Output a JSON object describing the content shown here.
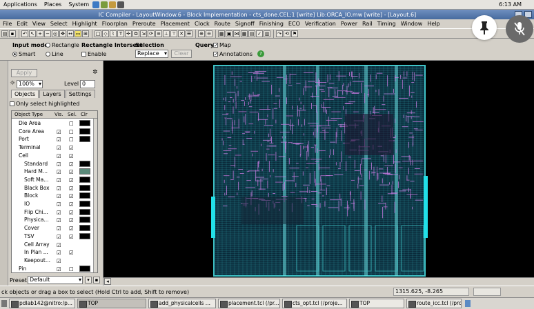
{
  "gnome": {
    "applications": "Applications",
    "places": "Places",
    "system": "System",
    "clock": "6:13 AM"
  },
  "window": {
    "title": "IC Compiler - LayoutWindow.6 - Block Implementation - cts_done.CEL;1 [write]    Lib:ORCA_IO.mw [write] - [Layout.6]"
  },
  "menu": [
    "File",
    "Edit",
    "View",
    "Select",
    "Highlight",
    "Floorplan",
    "Preroute",
    "Placement",
    "Clock",
    "Route",
    "Signoff",
    "Finishing",
    "ECO",
    "Verification",
    "Power",
    "Rail",
    "Timing",
    "Window",
    "Help"
  ],
  "options": {
    "input_mode_label": "Input mode",
    "rectangle": "Rectangle",
    "smart": "Smart",
    "line": "Line",
    "rect_intersect_label": "Rectangle Intersect",
    "enable": "Enable",
    "selection_label": "Selection",
    "selection_value": "Replace",
    "clear": "Clear",
    "query_label": "Query",
    "map": "Map",
    "annotations": "Annotations"
  },
  "panel": {
    "apply": "Apply",
    "zoom": "100%",
    "level_label": "Level",
    "level_value": "0",
    "tabs": [
      "Objects",
      "Layers",
      "Settings"
    ],
    "only_select_highlighted": "Only select highlighted",
    "columns": {
      "type": "Object Type",
      "vis": "Vis.",
      "sel": "Sel.",
      "clr": "Clr"
    },
    "rows": [
      {
        "name": "Die Area",
        "indent": 0,
        "vis": "",
        "sel": "☐",
        "color": "#000000"
      },
      {
        "name": "Core Area",
        "indent": 0,
        "vis": "☑",
        "sel": "☐",
        "color": "#000000"
      },
      {
        "name": "Port",
        "indent": 0,
        "vis": "☑",
        "sel": "☐",
        "color": "#000000"
      },
      {
        "name": "Terminal",
        "indent": 0,
        "vis": "☑",
        "sel": "☑",
        "color": ""
      },
      {
        "name": "Cell",
        "indent": 0,
        "vis": "☑",
        "sel": "☑",
        "color": ""
      },
      {
        "name": "Standard",
        "indent": 1,
        "vis": "☑",
        "sel": "☑",
        "color": "#000000"
      },
      {
        "name": "Hard M...",
        "indent": 1,
        "vis": "☑",
        "sel": "☑",
        "color": "#5a8a7a"
      },
      {
        "name": "Soft Ma...",
        "indent": 1,
        "vis": "☑",
        "sel": "☑",
        "color": "#000000"
      },
      {
        "name": "Black Box",
        "indent": 1,
        "vis": "☑",
        "sel": "☑",
        "color": "#000000"
      },
      {
        "name": "Block",
        "indent": 1,
        "vis": "☑",
        "sel": "☑",
        "color": "#000000"
      },
      {
        "name": "IO",
        "indent": 1,
        "vis": "☑",
        "sel": "☑",
        "color": "#000000"
      },
      {
        "name": "Flip Chi...",
        "indent": 1,
        "vis": "☑",
        "sel": "☑",
        "color": "#000000"
      },
      {
        "name": "Physica...",
        "indent": 1,
        "vis": "☑",
        "sel": "☑",
        "color": "#000000"
      },
      {
        "name": "Cover",
        "indent": 1,
        "vis": "☑",
        "sel": "☑",
        "color": "#000000"
      },
      {
        "name": "TSV",
        "indent": 1,
        "vis": "☑",
        "sel": "☑",
        "color": "#000000"
      },
      {
        "name": "Cell Array",
        "indent": 1,
        "vis": "☑",
        "sel": "",
        "color": ""
      },
      {
        "name": "In Plan ...",
        "indent": 1,
        "vis": "☑",
        "sel": "☑",
        "color": ""
      },
      {
        "name": "Keepout...",
        "indent": 1,
        "vis": "☑",
        "sel": "",
        "color": ""
      },
      {
        "name": "Pin",
        "indent": 0,
        "vis": "☑",
        "sel": "☐",
        "color": "#000000"
      }
    ],
    "preset_label": "Preset",
    "preset_value": "Default"
  },
  "status": {
    "hint": "ck objects or drag a box to select (Hold Ctrl to add, Shift to remove)",
    "coords": "1315.625, -8.265"
  },
  "taskbar": [
    "pdlab142@nitro:/p...",
    "TOP",
    "add_physicalcells ...",
    "placement.tcl (/pr...",
    "cts_opt.tcl (/proje...",
    "TOP",
    "route_icc.tcl (/proj..."
  ],
  "colors": {
    "layout_core": "#3fc4c8",
    "layout_route": "#c77ae0",
    "background": "#000000",
    "pads": "#22e0e8"
  }
}
